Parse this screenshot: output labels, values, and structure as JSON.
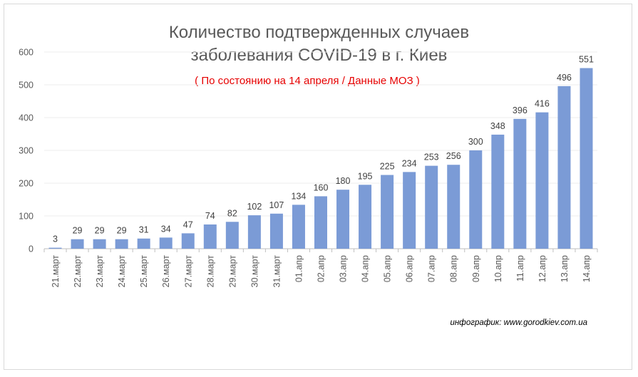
{
  "chart_data": {
    "type": "bar",
    "title_line1": "Количество подтвержденных случаев",
    "title_line2": "заболевания COVID-19 в г. Киев",
    "subtitle": "( По состоянию на 14 апреля / Данные МОЗ )",
    "credit": "инфографик: www.gorodkiev.com.ua",
    "categories": [
      "21.март",
      "22.март",
      "23.март",
      "24.март",
      "25.март",
      "26.март",
      "27.март",
      "28.март",
      "29.март",
      "30.март",
      "31.март",
      "01.апр",
      "02.апр",
      "03.апр",
      "04.апр",
      "05.апр",
      "06.апр",
      "07.апр",
      "08.апр",
      "09.апр",
      "10.апр",
      "11.апр",
      "12.апр",
      "13.апр",
      "14.апр"
    ],
    "values": [
      3,
      29,
      29,
      29,
      31,
      34,
      47,
      74,
      82,
      102,
      107,
      134,
      160,
      180,
      195,
      225,
      234,
      253,
      256,
      300,
      348,
      396,
      416,
      496,
      551
    ],
    "y_ticks": [
      0,
      100,
      200,
      300,
      400,
      500,
      600
    ],
    "ylim": [
      0,
      600
    ],
    "grid": true,
    "legend": "none",
    "bar_color": "#7b9bd6",
    "title_color": "#595959",
    "subtitle_color": "#e60000"
  }
}
